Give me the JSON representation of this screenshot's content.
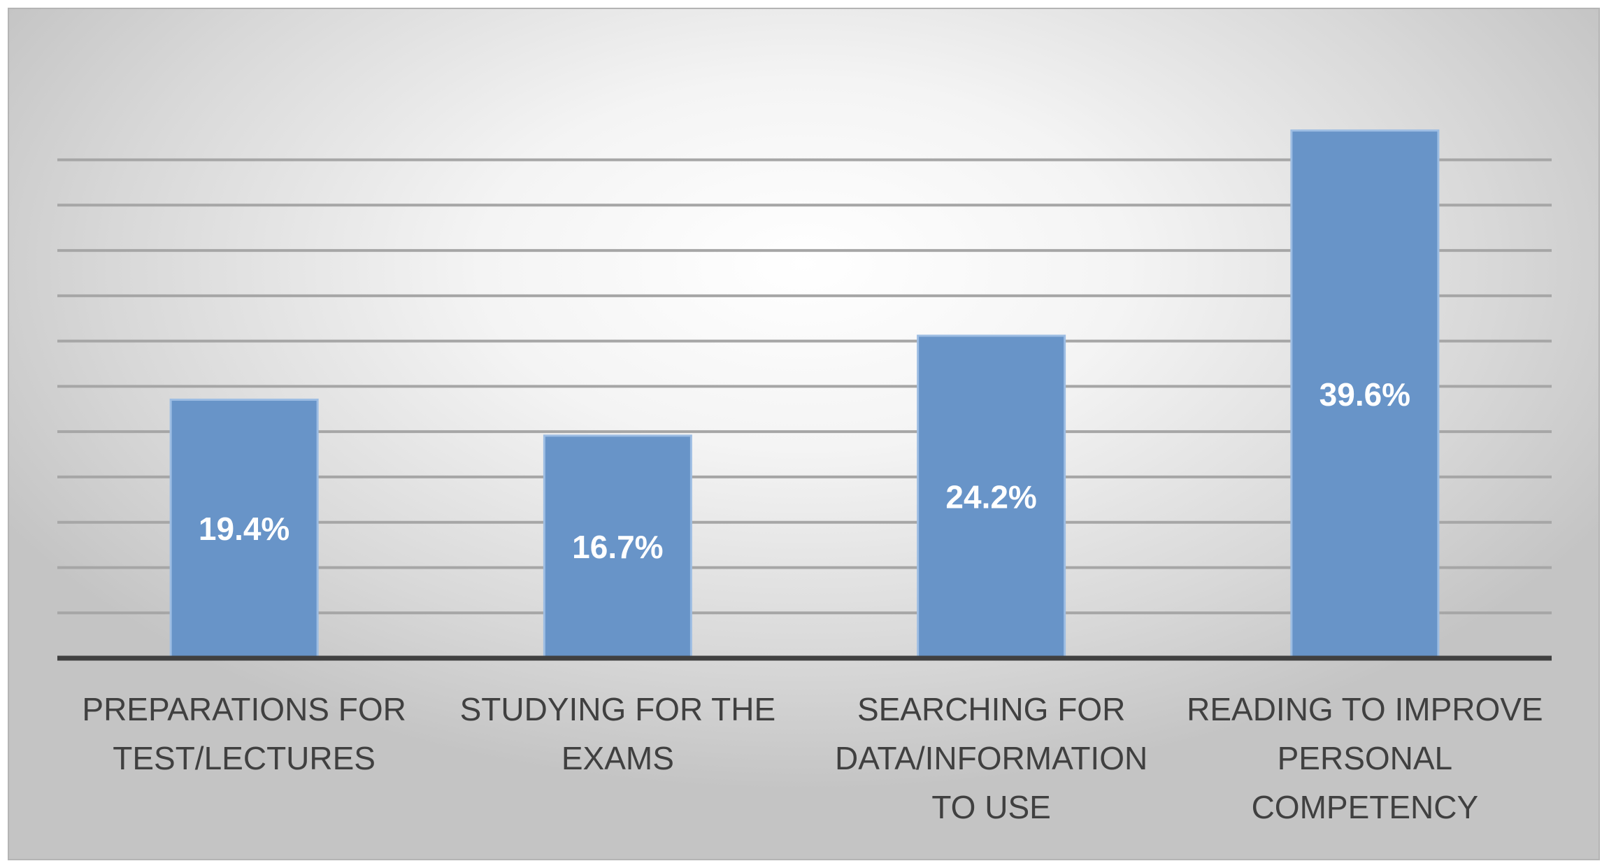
{
  "chart_data": {
    "type": "bar",
    "categories": [
      [
        "PREPARATIONS FOR",
        "TEST/LECTURES"
      ],
      [
        "STUDYING FOR THE",
        "EXAMS"
      ],
      [
        "SEARCHING FOR",
        "DATA/INFORMATION",
        "TO USE"
      ],
      [
        "READING TO IMPROVE",
        "PERSONAL",
        "COMPETENCY"
      ]
    ],
    "values": [
      19.4,
      16.7,
      24.2,
      39.6
    ],
    "value_labels": [
      "19.4%",
      "16.7%",
      "24.2%",
      "39.6%"
    ],
    "ylim": [
      0,
      40
    ],
    "grid": true,
    "colors": {
      "bar": "#6894c8",
      "bar_border": "#9dbde3",
      "gridline": "#a6a6a6",
      "axis": "#404040"
    }
  }
}
